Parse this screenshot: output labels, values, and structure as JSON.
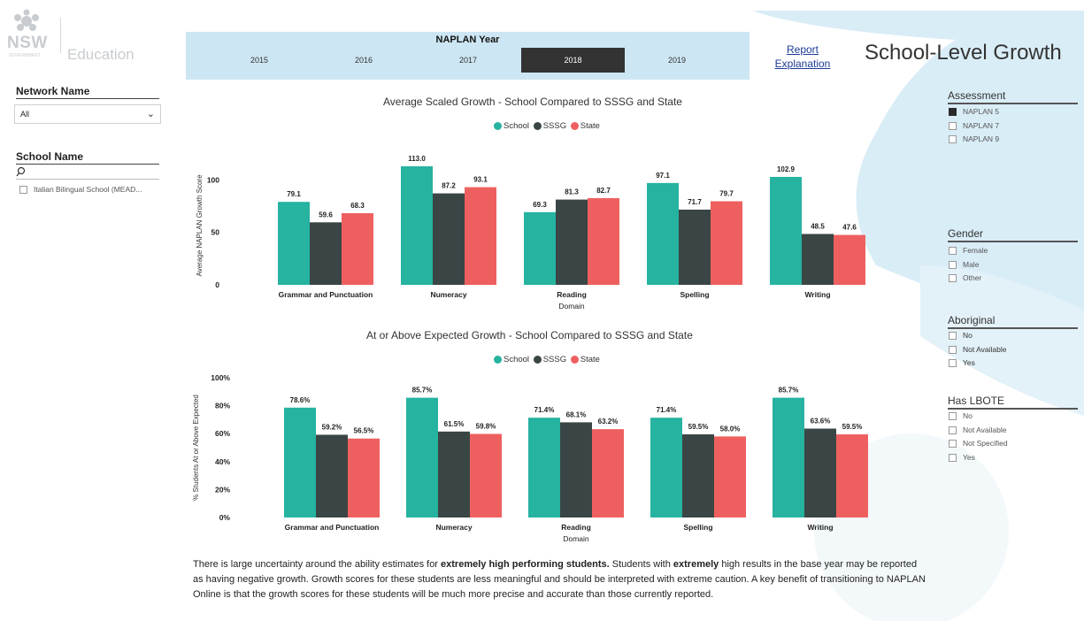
{
  "colors": {
    "school": "#26b3a0",
    "sssg": "#3a4645",
    "state": "#ee6060",
    "year_bar": "#cde6f3",
    "selected": "#333333",
    "link": "#1f3d99"
  },
  "logo": {
    "brand": "NSW",
    "subtext": "GOVERNMENT",
    "unit": "Education"
  },
  "left": {
    "network": {
      "title": "Network Name",
      "value": "All"
    },
    "school": {
      "title": "School Name",
      "search_icon": "search-icon",
      "options": [
        "Italian Bilingual School (MEAD..."
      ]
    }
  },
  "year": {
    "title": "NAPLAN Year",
    "options": [
      "2015",
      "2016",
      "2017",
      "2018",
      "2019"
    ],
    "selected": "2018"
  },
  "report_link": {
    "line1": "Report",
    "line2": "Explanation"
  },
  "page_title": "School-Level Growth",
  "right": {
    "assessment": {
      "title": "Assessment",
      "options": [
        {
          "label": "NAPLAN 5",
          "checked": true
        },
        {
          "label": "NAPLAN 7",
          "checked": false
        },
        {
          "label": "NAPLAN 9",
          "checked": false
        }
      ]
    },
    "gender": {
      "title": "Gender",
      "options": [
        {
          "label": "Female",
          "checked": false
        },
        {
          "label": "Male",
          "checked": false
        },
        {
          "label": "Other",
          "checked": false
        }
      ]
    },
    "aboriginal": {
      "title": "Aboriginal",
      "options": [
        {
          "label": "No",
          "checked": false
        },
        {
          "label": "Not Available",
          "checked": false
        },
        {
          "label": "Yes",
          "checked": false
        }
      ]
    },
    "lbote": {
      "title": "Has LBOTE",
      "options": [
        {
          "label": "No",
          "checked": false
        },
        {
          "label": "Not Available",
          "checked": false
        },
        {
          "label": "Not Specified",
          "checked": false
        },
        {
          "label": "Yes",
          "checked": false
        }
      ]
    }
  },
  "chart_data": [
    {
      "type": "bar",
      "title": "Average Scaled Growth - School Compared to SSSG and State",
      "ylabel": "Average NAPLAN Growth Score",
      "xlabel": "Domain",
      "ylim": [
        0,
        113
      ],
      "yticks": [
        "0",
        "50",
        "100"
      ],
      "legend_position": "top",
      "categories": [
        "Grammar and Punctuation",
        "Numeracy",
        "Reading",
        "Spelling",
        "Writing"
      ],
      "series": [
        {
          "name": "School",
          "values": [
            79.1,
            113.0,
            69.3,
            97.1,
            102.9
          ],
          "labels": [
            "79.1",
            "113.0",
            "69.3",
            "97.1",
            "102.9"
          ]
        },
        {
          "name": "SSSG",
          "values": [
            59.6,
            87.2,
            81.3,
            71.7,
            48.5
          ],
          "labels": [
            "59.6",
            "87.2",
            "81.3",
            "71.7",
            "48.5"
          ]
        },
        {
          "name": "State",
          "values": [
            68.3,
            93.1,
            82.7,
            79.7,
            47.6
          ],
          "labels": [
            "68.3",
            "93.1",
            "82.7",
            "79.7",
            "47.6"
          ]
        }
      ]
    },
    {
      "type": "bar",
      "title": "At or Above Expected Growth - School Compared to SSSG and State",
      "ylabel": "% Students At or Above Expected",
      "xlabel": "Domain",
      "ylim": [
        0,
        100
      ],
      "yticks": [
        "0%",
        "20%",
        "40%",
        "60%",
        "80%",
        "100%"
      ],
      "legend_position": "top",
      "categories": [
        "Grammar and Punctuation",
        "Numeracy",
        "Reading",
        "Spelling",
        "Writing"
      ],
      "series": [
        {
          "name": "School",
          "values": [
            78.6,
            85.7,
            71.4,
            71.4,
            85.7
          ],
          "labels": [
            "78.6%",
            "85.7%",
            "71.4%",
            "71.4%",
            "85.7%"
          ]
        },
        {
          "name": "SSSG",
          "values": [
            59.2,
            61.5,
            68.1,
            59.5,
            63.6
          ],
          "labels": [
            "59.2%",
            "61.5%",
            "68.1%",
            "59.5%",
            "63.6%"
          ]
        },
        {
          "name": "State",
          "values": [
            56.5,
            59.8,
            63.2,
            58.0,
            59.5
          ],
          "labels": [
            "56.5%",
            "59.8%",
            "63.2%",
            "58.0%",
            "59.5%"
          ]
        }
      ]
    }
  ],
  "footnote": {
    "p1": "There is large uncertainty around the ability estimates for ",
    "b1": "extremely high performing students.",
    "p2": " Students with ",
    "b2": "extremely",
    "p3": " high results in the base year may be reported as having negative growth. Growth scores for these students are less meaningful and should be interpreted with extreme caution. A key benefit of transitioning to NAPLAN Online is that the growth scores for these students will be much more precise and accurate than those currently reported."
  }
}
